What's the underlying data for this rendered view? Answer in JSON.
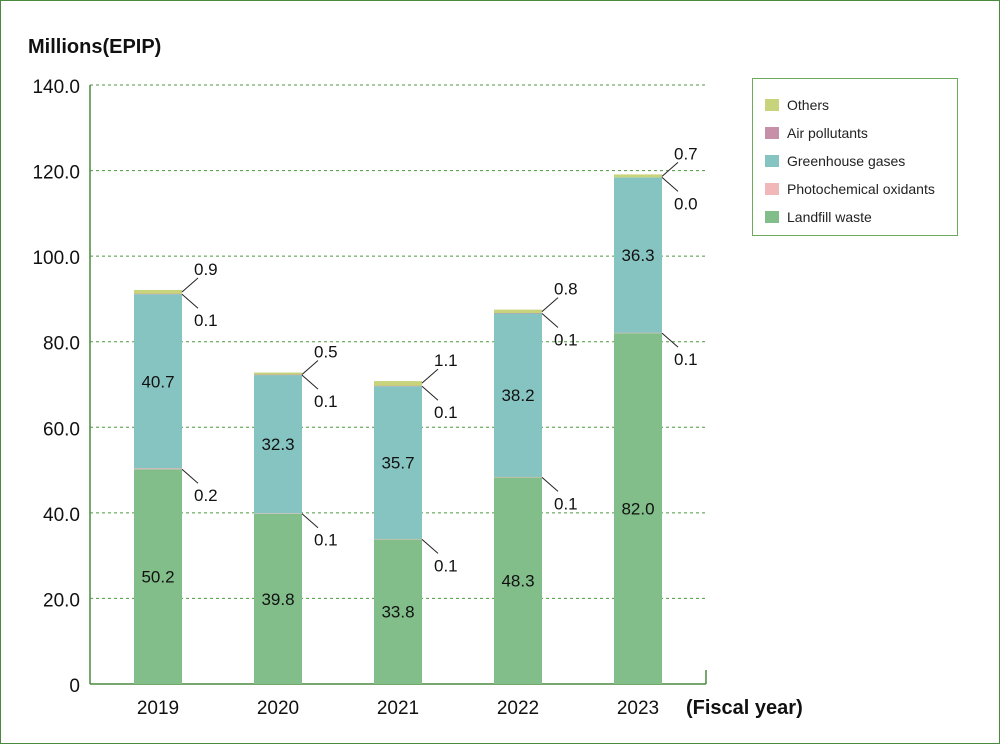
{
  "chart_data": {
    "type": "bar",
    "stacked": true,
    "ylabel": "Millions(EPIP)",
    "xlabel": "(Fiscal year)",
    "ylim": [
      0,
      140
    ],
    "yticks": [
      "0",
      "20.0",
      "40.0",
      "60.0",
      "80.0",
      "100.0",
      "120.0",
      "140.0"
    ],
    "ytick_values": [
      0,
      20,
      40,
      60,
      80,
      100,
      120,
      140
    ],
    "grid": true,
    "legend_position": "top-right",
    "categories": [
      "2019",
      "2020",
      "2021",
      "2022",
      "2023"
    ],
    "series": [
      {
        "name": "Landfill waste",
        "color": "#82be8a",
        "values": [
          50.2,
          39.8,
          33.8,
          48.3,
          82.0
        ]
      },
      {
        "name": "Photochemical oxidants",
        "color": "#f0b8b8",
        "values": [
          0.2,
          0.1,
          0.1,
          0.1,
          0.1
        ]
      },
      {
        "name": "Greenhouse gases",
        "color": "#86c4c2",
        "values": [
          40.7,
          32.3,
          35.7,
          38.2,
          36.3
        ]
      },
      {
        "name": "Air pollutants",
        "color": "#c690a8",
        "values": [
          0.1,
          0.1,
          0.1,
          0.1,
          0.0
        ]
      },
      {
        "name": "Others",
        "color": "#c8d47c",
        "values": [
          0.9,
          0.5,
          1.1,
          0.8,
          0.7
        ]
      }
    ],
    "labels": {
      "Landfill waste": [
        "50.2",
        "39.8",
        "33.8",
        "48.3",
        "82.0"
      ],
      "Photochemical oxidants": [
        "0.2",
        "0.1",
        "0.1",
        "0.1",
        "0.1"
      ],
      "Greenhouse gases": [
        "40.7",
        "32.3",
        "35.7",
        "38.2",
        "36.3"
      ],
      "Air pollutants": [
        "0.1",
        "0.1",
        "0.1",
        "0.1",
        "0.0"
      ],
      "Others": [
        "0.9",
        "0.5",
        "1.1",
        "0.8",
        "0.7"
      ]
    }
  },
  "legend": {
    "items": [
      {
        "label": "Others",
        "color": "#c8d47c"
      },
      {
        "label": "Air pollutants",
        "color": "#c690a8"
      },
      {
        "label": "Greenhouse gases",
        "color": "#86c4c2"
      },
      {
        "label": "Photochemical oxidants",
        "color": "#f0b8b8"
      },
      {
        "label": "Landfill waste",
        "color": "#82be8a"
      }
    ]
  },
  "colors": {
    "axis": "#4a8a3c",
    "grid": "#4a9a3c",
    "frame": "#4a8a3c"
  }
}
